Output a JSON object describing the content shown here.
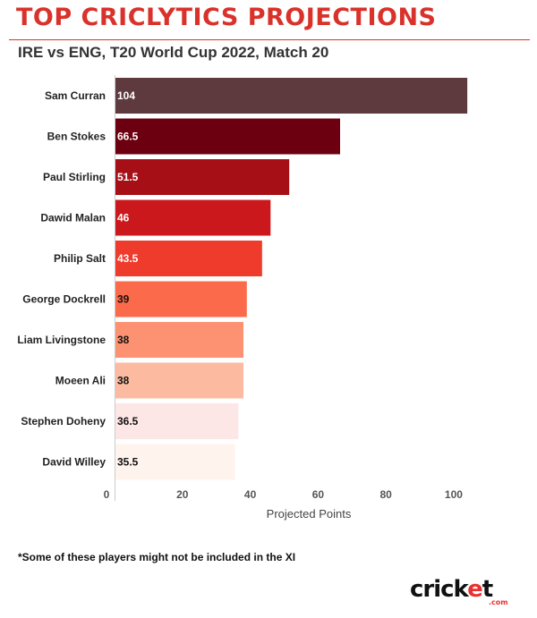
{
  "header": {
    "title": "TOP CRICLYTICS PROJECTIONS",
    "subtitle": "IRE vs ENG, T20 World Cup 2022, Match 20"
  },
  "chart_data": {
    "type": "bar",
    "orientation": "horizontal",
    "categories": [
      "Sam Curran",
      "Ben Stokes",
      "Paul Stirling",
      "Dawid Malan",
      "Philip Salt",
      "George Dockrell",
      "Liam Livingstone",
      "Moeen Ali",
      "Stephen Doheny",
      "David Willey"
    ],
    "values": [
      104,
      66.5,
      51.5,
      46,
      43.5,
      39,
      38,
      38,
      36.5,
      35.5
    ],
    "value_labels": [
      "104",
      "66.5",
      "51.5",
      "46",
      "43.5",
      "39",
      "38",
      "38",
      "36.5",
      "35.5"
    ],
    "bar_colors": [
      "#5e3a3e",
      "#6d0010",
      "#a50f15",
      "#cb181d",
      "#ef3b2c",
      "#fb6a4a",
      "#fc9272",
      "#fcbba1",
      "#fde6e6",
      "#fff3ee"
    ],
    "label_colors": [
      "#ffffff",
      "#ffffff",
      "#ffffff",
      "#ffffff",
      "#ffffff",
      "#111111",
      "#111111",
      "#111111",
      "#111111",
      "#111111"
    ],
    "xlabel": "Projected Points",
    "ylabel": "",
    "xlim": [
      0,
      114
    ],
    "xticks": [
      0,
      20,
      40,
      60,
      80,
      100
    ],
    "grid": false
  },
  "footnote": "*Some of these players might not be included in the XI",
  "logo": {
    "text_main": "cricket",
    "text_sub": ".com",
    "color_main": "#111111",
    "color_accent": "#e8312f"
  }
}
